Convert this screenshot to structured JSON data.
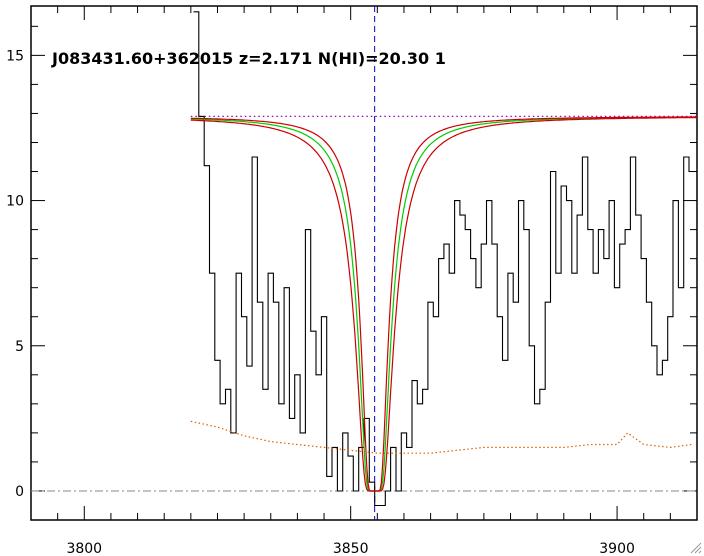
{
  "chart_data": {
    "type": "line",
    "title": "J083431.60+362015 z=2.171 N(HI)=20.30 1",
    "xlabel": "",
    "ylabel": "",
    "xlim": [
      3790,
      3915
    ],
    "ylim": [
      -1,
      16.7
    ],
    "x_ticks": [
      3800,
      3850,
      3900
    ],
    "x_tick_labels": [
      "3800",
      "3850",
      "3900"
    ],
    "y_ticks": [
      0,
      5,
      10,
      15
    ],
    "y_tick_labels": [
      "0",
      "5",
      "10",
      "15"
    ],
    "grid": false,
    "continuum_level": 12.9,
    "line_center": 3854.5,
    "colors": {
      "flux": "#000000",
      "error": "#e06000",
      "model": "#00cc00",
      "bounds": "#cc0000",
      "continuum": "#a000c0",
      "center": "#0000cc",
      "zero": "#888888"
    },
    "series": [
      {
        "style": "step",
        "color": "#000000",
        "x": [
          3821,
          3822,
          3823,
          3824,
          3825,
          3826,
          3827,
          3828,
          3829,
          3830,
          3831,
          3832,
          3833,
          3834,
          3835,
          3836,
          3837,
          3838,
          3839,
          3840,
          3841,
          3842,
          3843,
          3844,
          3845,
          3846,
          3847,
          3848,
          3849,
          3850,
          3851,
          3852,
          3853,
          3854,
          3855,
          3856,
          3857,
          3858,
          3859,
          3860,
          3861,
          3862,
          3863,
          3864,
          3865,
          3866,
          3867,
          3868,
          3869,
          3870,
          3871,
          3872,
          3873,
          3874,
          3875,
          3876,
          3877,
          3878,
          3879,
          3880,
          3881,
          3882,
          3883,
          3884,
          3885,
          3886,
          3887,
          3888,
          3889,
          3890,
          3891,
          3892,
          3893,
          3894,
          3895,
          3896,
          3897,
          3898,
          3899,
          3900,
          3901,
          3902,
          3903,
          3904,
          3905,
          3906,
          3907,
          3908,
          3909,
          3910,
          3911,
          3912,
          3913,
          3914
        ],
        "y": [
          16.5,
          12.9,
          11.2,
          7.5,
          4.5,
          3.0,
          3.5,
          2.0,
          7.5,
          6.0,
          4.3,
          11.5,
          6.5,
          3.5,
          7.5,
          6.5,
          3.0,
          7.0,
          2.5,
          4.0,
          2.0,
          9.0,
          5.5,
          4.0,
          6.0,
          0.5,
          1.5,
          0.0,
          2.0,
          1.2,
          0.0,
          1.5,
          2.5,
          0.3,
          -0.5,
          -0.5,
          0.0,
          1.5,
          0.0,
          2.0,
          1.5,
          3.8,
          3.0,
          3.5,
          6.5,
          6.0,
          8.0,
          8.5,
          7.5,
          10.0,
          9.5,
          9.0,
          8.0,
          7.0,
          8.5,
          10.0,
          8.5,
          6.0,
          4.5,
          7.5,
          6.5,
          10.0,
          9.0,
          5.0,
          3.0,
          3.5,
          6.5,
          11.0,
          7.5,
          10.5,
          10.0,
          7.5,
          9.5,
          11.5,
          9.0,
          7.5,
          9.0,
          8.0,
          10.0,
          7.0,
          8.5,
          9.0,
          11.5,
          9.5,
          8.0,
          6.5,
          5.0,
          4.0,
          4.5,
          6.0,
          10.0,
          7.0,
          11.5,
          11.0
        ]
      },
      {
        "style": "dotted",
        "color": "#e06000",
        "x": [
          3820,
          3825,
          3830,
          3835,
          3840,
          3845,
          3850,
          3855,
          3860,
          3865,
          3870,
          3875,
          3880,
          3885,
          3890,
          3895,
          3900,
          3902,
          3905,
          3910,
          3914
        ],
        "y": [
          2.4,
          2.2,
          1.9,
          1.7,
          1.6,
          1.5,
          1.4,
          1.3,
          1.3,
          1.3,
          1.4,
          1.5,
          1.5,
          1.5,
          1.5,
          1.6,
          1.6,
          2.0,
          1.6,
          1.5,
          1.6
        ]
      }
    ],
    "model": {
      "center": 3854.5,
      "continuum": 12.9,
      "curves": [
        {
          "color": "#00cc00",
          "continuum": 12.9,
          "log_n": 20.3
        },
        {
          "color": "#cc0000",
          "continuum": 12.9,
          "log_n": 20.45
        },
        {
          "color": "#cc0000",
          "continuum": 12.9,
          "log_n": 20.15
        }
      ]
    }
  },
  "ui": {
    "resize_grip_icon": "resize-grip-icon"
  }
}
